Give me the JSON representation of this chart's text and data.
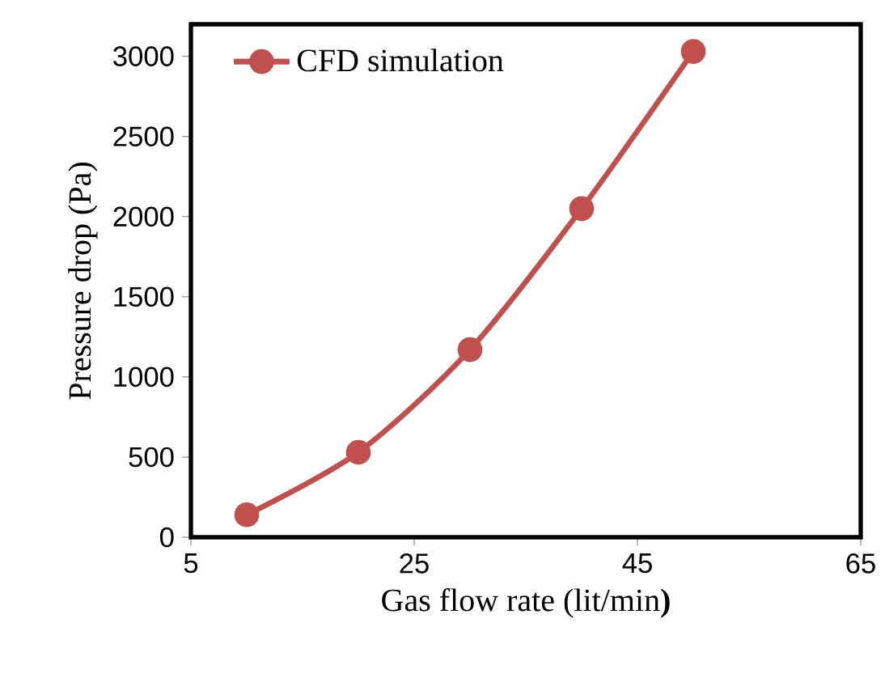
{
  "chart_data": {
    "type": "line",
    "xlabel": "Gas flow rate (lit/min**)**",
    "ylabel": "Pressure drop (Pa)",
    "xlim": [
      5,
      65
    ],
    "xticks": [
      5,
      25,
      45,
      65
    ],
    "ylim": [
      0,
      3200
    ],
    "yticks": [
      0,
      500,
      1000,
      1500,
      2000,
      2500,
      3000
    ],
    "x": [
      10,
      20,
      30,
      40,
      50
    ],
    "series": [
      {
        "name": "CFD simulation",
        "color": "#c0504d",
        "values": [
          140,
          530,
          1170,
          2050,
          3030
        ]
      }
    ],
    "legend": "top left",
    "marker": "circle",
    "line_style": "solid",
    "grid": false
  }
}
